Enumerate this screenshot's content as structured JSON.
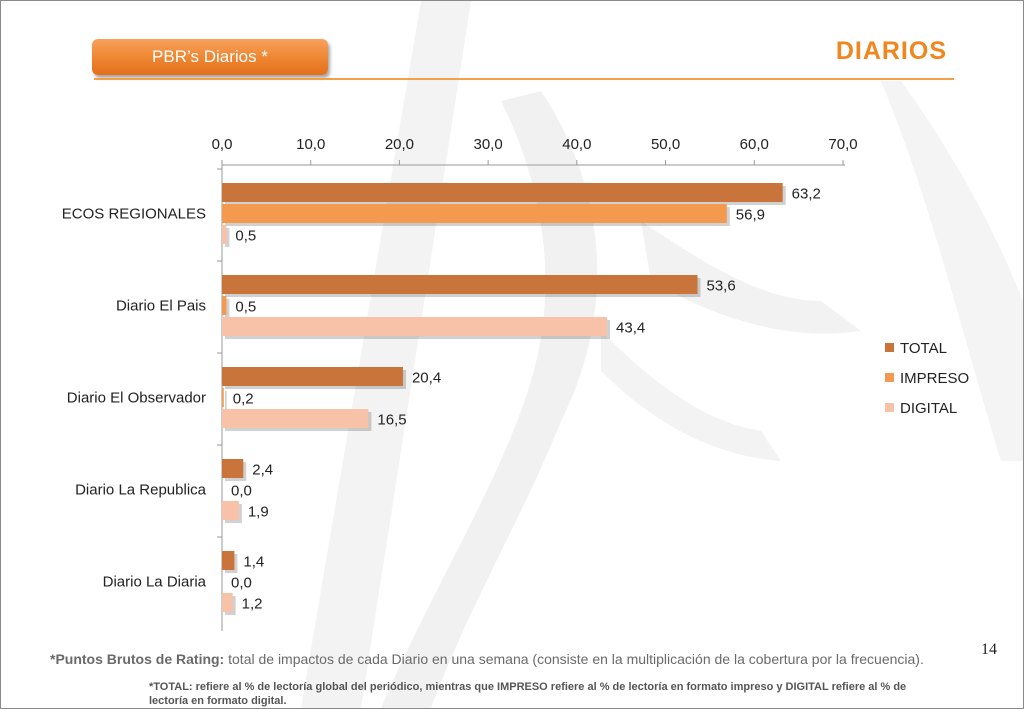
{
  "header": {
    "pill_label": "PBR’s Diarios  *",
    "title": "DIARIOS"
  },
  "colors": {
    "accent": "#f0861e",
    "total": "#c8743a",
    "impreso": "#f39a4e",
    "digital": "#f8c2a8"
  },
  "chart_data": {
    "type": "bar",
    "orientation": "horizontal",
    "categories": [
      "ECOS REGIONALES",
      "Diario El Pais",
      "Diario El Observador",
      "Diario La Republica",
      "Diario La Diaria"
    ],
    "series": [
      {
        "name": "TOTAL",
        "values": [
          63.2,
          53.6,
          20.4,
          2.4,
          1.4
        ],
        "labels": [
          "63,2",
          "53,6",
          "20,4",
          "2,4",
          "1,4"
        ],
        "color": "#c8743a"
      },
      {
        "name": "IMPRESO",
        "values": [
          56.9,
          0.5,
          0.2,
          0.0,
          0.0
        ],
        "labels": [
          "56,9",
          "0,5",
          "0,2",
          "0,0",
          "0,0"
        ],
        "color": "#f39a4e"
      },
      {
        "name": "DIGITAL",
        "values": [
          0.5,
          43.4,
          16.5,
          1.9,
          1.2
        ],
        "labels": [
          "0,5",
          "43,4",
          "16,5",
          "1,9",
          "1,2"
        ],
        "color": "#f8c2a8"
      }
    ],
    "xlim": [
      0,
      70
    ],
    "ticks": [
      "0,0",
      "10,0",
      "20,0",
      "30,0",
      "40,0",
      "50,0",
      "60,0",
      "70,0"
    ],
    "axis_position": "top",
    "grid": false,
    "legend_position": "right"
  },
  "footer": {
    "page_number": "14",
    "note_bold": "*Puntos Brutos de Rating:",
    "note_text": " total de impactos de cada Diario en una semana (consiste en la multiplicación de la cobertura por la frecuencia).",
    "note_small": "*TOTAL: refiere al % de lectoría global del periódico, mientras que IMPRESO refiere al % de lectoría en formato impreso y DIGITAL refiere al % de lectoría en formato digital."
  }
}
